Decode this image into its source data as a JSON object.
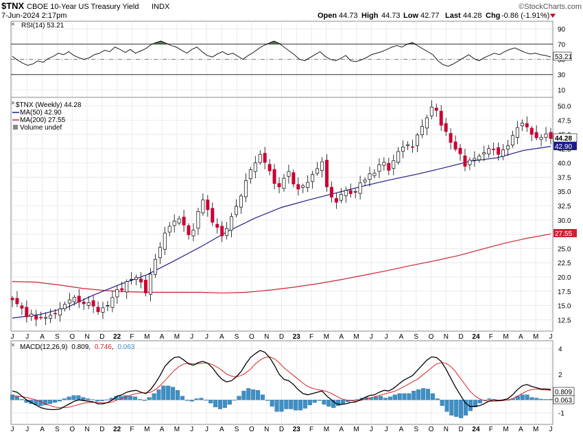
{
  "header": {
    "symbol": "$TNX",
    "name": "CBOE 10-Year US Treasury Yield",
    "exchange": "INDX",
    "date": "7-Jun-2024 2:17pm",
    "logo": "©StockCharts.com",
    "open_label": "Open",
    "open": "44.73",
    "high_label": "High",
    "high": "44.73",
    "low_label": "Low",
    "low": "42.77",
    "last_label": "Last",
    "last": "44.28",
    "chg_label": "Chg",
    "chg": "-0.86 (-1.91%)"
  },
  "colors": {
    "up": "#ffffff",
    "down": "#cc0033",
    "candle_outline": "#000000",
    "ma50": "#1c1c8c",
    "ma200": "#cc2233",
    "macd_line": "#000000",
    "signal_line": "#dd2222",
    "histogram": "#3d8fc6",
    "rsi_fill": "#4d7a4d",
    "grid": "#e6e6e6",
    "panel_border": "#888888"
  },
  "chart_data": [
    {
      "type": "line",
      "panel": "rsi",
      "title": "RSI(14) 53.21",
      "current_value": "53.21",
      "yticks": [
        "90",
        "70",
        "50",
        "30",
        "10"
      ],
      "ylim": [
        0,
        100
      ],
      "overbought": 70,
      "oversold": 30,
      "values": [
        54,
        49,
        45,
        42,
        44,
        48,
        46,
        51,
        54,
        58,
        56,
        60,
        55,
        52,
        50,
        52,
        56,
        58,
        62,
        60,
        66,
        63,
        59,
        63,
        58,
        61,
        64,
        69,
        72,
        74,
        71,
        68,
        66,
        62,
        58,
        63,
        66,
        60,
        55,
        53,
        57,
        60,
        56,
        58,
        54,
        50,
        55,
        59,
        64,
        68,
        71,
        74,
        71,
        66,
        61,
        56,
        50,
        48,
        52,
        56,
        60,
        54,
        50,
        48,
        51,
        55,
        48,
        47,
        49,
        52,
        56,
        58,
        60,
        63,
        66,
        68,
        66,
        70,
        72,
        68,
        64,
        60,
        56,
        48,
        43,
        41,
        44,
        48,
        52,
        56,
        51,
        48,
        52,
        55,
        58,
        56,
        60,
        63,
        65,
        62,
        59,
        57,
        58,
        56,
        55,
        53
      ]
    },
    {
      "type": "candlestick",
      "panel": "price",
      "title": "$TNX (Weekly) 44.28",
      "legend": [
        "$TNX (Weekly) 44.28",
        "MA(50) 42.90",
        "MA(200) 27.55",
        "Volume undef"
      ],
      "yticks": [
        "50.0",
        "47.5",
        "45.0",
        "42.5",
        "40.0",
        "37.5",
        "35.0",
        "32.5",
        "30.0",
        "27.5",
        "25.0",
        "22.5",
        "20.0",
        "17.5",
        "15.0",
        "12.5"
      ],
      "ylim": [
        10.5,
        51.5
      ],
      "last_label": "44.28",
      "ma50_label": "42.90",
      "ma200_label": "27.55",
      "closes": [
        16.0,
        15.3,
        14.5,
        13.0,
        13.5,
        12.6,
        12.9,
        12.9,
        13.3,
        13.6,
        14.4,
        15.2,
        16.0,
        16.4,
        15.6,
        15.3,
        15.5,
        14.9,
        13.9,
        14.6,
        15.0,
        16.4,
        17.8,
        17.7,
        19.2,
        19.6,
        19.9,
        19.1,
        17.2,
        20.5,
        23.1,
        25.2,
        27.7,
        28.9,
        29.8,
        30.2,
        29.1,
        27.4,
        28.2,
        31.5,
        33.5,
        31.8,
        29.6,
        28.7,
        27.2,
        28.5,
        30.6,
        32.4,
        34.2,
        36.9,
        38.8,
        40.0,
        41.5,
        40.1,
        38.6,
        36.4,
        35.8,
        37.3,
        38.5,
        36.3,
        35.4,
        36.0,
        36.6,
        38.0,
        39.0,
        40.2,
        35.8,
        34.0,
        33.1,
        34.5,
        35.2,
        34.6,
        35.0,
        36.5,
        37.0,
        38.1,
        38.2,
        39.7,
        40.1,
        38.7,
        40.4,
        42.0,
        42.8,
        43.2,
        42.8,
        44.9,
        46.4,
        47.9,
        49.8,
        49.2,
        46.6,
        45.5,
        43.6,
        42.4,
        41.6,
        39.4,
        40.5,
        40.8,
        41.2,
        41.8,
        42.5,
        42.4,
        41.5,
        42.3,
        43.0,
        44.8,
        46.2,
        47.0,
        46.3,
        45.0,
        44.4,
        44.5,
        45.1,
        44.28
      ]
    },
    {
      "type": "line",
      "panel": "price_overlay",
      "series": [
        {
          "name": "MA(50)",
          "value_label": "42.90",
          "values": [
            12.8,
            13.4,
            14.6,
            16.8,
            18.7,
            20.4,
            22.8,
            25.3,
            28.0,
            30.3,
            32.2,
            33.5,
            34.7,
            35.9,
            37.0,
            38.0,
            39.1,
            40.3,
            40.9,
            42.2,
            42.9
          ]
        },
        {
          "name": "MA(200)",
          "value_label": "27.55",
          "values": [
            19.2,
            19.1,
            18.6,
            18.0,
            17.6,
            17.4,
            17.3,
            17.3,
            17.3,
            17.2,
            17.3,
            17.7,
            18.2,
            18.8,
            19.5,
            20.3,
            21.1,
            22.0,
            22.8,
            23.7,
            24.8,
            25.9,
            26.8,
            27.55
          ]
        }
      ]
    },
    {
      "type": "line",
      "panel": "macd",
      "title": "MACD(12,26,9)",
      "macd_label": "0.809",
      "signal_label": "0.746",
      "hist_label": "0.063",
      "yticks": [
        "4",
        "2",
        "0",
        "-1"
      ],
      "ylim": [
        -1.9,
        4.6
      ],
      "right_labels": [
        "0.809",
        "0.063"
      ],
      "macd": [
        0.7,
        0.6,
        0.3,
        0.0,
        -0.2,
        -0.4,
        -0.6,
        -0.7,
        -0.75,
        -0.75,
        -0.7,
        -0.5,
        -0.3,
        -0.1,
        0.0,
        -0.05,
        -0.1,
        -0.15,
        -0.3,
        -0.3,
        -0.2,
        0.0,
        0.3,
        0.4,
        0.6,
        0.7,
        0.75,
        0.6,
        0.5,
        0.8,
        1.3,
        1.9,
        2.6,
        3.0,
        3.3,
        3.35,
        3.1,
        2.8,
        2.7,
        2.9,
        3.0,
        2.85,
        2.5,
        2.0,
        1.6,
        1.4,
        1.5,
        1.8,
        2.2,
        2.8,
        3.3,
        3.6,
        3.85,
        3.7,
        3.3,
        2.7,
        2.0,
        1.6,
        1.5,
        1.2,
        0.8,
        0.5,
        0.4,
        0.5,
        0.6,
        0.7,
        0.3,
        0.0,
        -0.3,
        -0.35,
        -0.3,
        -0.2,
        -0.15,
        0.0,
        0.2,
        0.35,
        0.4,
        0.6,
        0.75,
        0.7,
        0.9,
        1.2,
        1.5,
        1.7,
        1.9,
        2.3,
        2.7,
        3.1,
        3.35,
        3.3,
        3.0,
        2.4,
        1.7,
        1.0,
        0.4,
        -0.2,
        -0.5,
        -0.5,
        -0.45,
        -0.3,
        -0.1,
        0.0,
        -0.05,
        0.0,
        0.1,
        0.4,
        0.8,
        1.1,
        1.2,
        1.05,
        0.95,
        0.85,
        0.85,
        0.809
      ],
      "signal": [
        0.3,
        0.3,
        0.25,
        0.2,
        0.1,
        0.0,
        -0.15,
        -0.3,
        -0.45,
        -0.55,
        -0.6,
        -0.6,
        -0.55,
        -0.45,
        -0.35,
        -0.25,
        -0.2,
        -0.18,
        -0.2,
        -0.22,
        -0.22,
        -0.15,
        0.0,
        0.1,
        0.25,
        0.4,
        0.5,
        0.55,
        0.55,
        0.6,
        0.8,
        1.1,
        1.5,
        1.9,
        2.3,
        2.6,
        2.8,
        2.85,
        2.8,
        2.8,
        2.85,
        2.85,
        2.75,
        2.55,
        2.3,
        2.0,
        1.85,
        1.8,
        1.9,
        2.1,
        2.4,
        2.8,
        3.1,
        3.3,
        3.35,
        3.2,
        2.9,
        2.5,
        2.2,
        1.9,
        1.6,
        1.3,
        1.05,
        0.9,
        0.8,
        0.75,
        0.65,
        0.5,
        0.3,
        0.1,
        0.0,
        -0.05,
        -0.08,
        -0.05,
        0.05,
        0.15,
        0.25,
        0.35,
        0.45,
        0.55,
        0.65,
        0.8,
        1.0,
        1.2,
        1.4,
        1.6,
        1.9,
        2.2,
        2.5,
        2.8,
        2.9,
        2.85,
        2.6,
        2.2,
        1.7,
        1.2,
        0.7,
        0.35,
        0.1,
        -0.05,
        -0.1,
        -0.1,
        -0.08,
        -0.05,
        0.0,
        0.1,
        0.3,
        0.5,
        0.7,
        0.8,
        0.85,
        0.8,
        0.78,
        0.746
      ],
      "histogram": [
        0.4,
        0.3,
        0.05,
        -0.2,
        -0.3,
        -0.4,
        -0.45,
        -0.4,
        -0.3,
        -0.2,
        -0.1,
        0.1,
        0.25,
        0.35,
        0.35,
        0.2,
        0.1,
        0.03,
        -0.1,
        -0.08,
        0.02,
        0.15,
        0.3,
        0.3,
        0.35,
        0.3,
        0.25,
        0.05,
        -0.05,
        0.2,
        0.5,
        0.8,
        1.1,
        1.1,
        1.0,
        0.75,
        0.3,
        -0.05,
        -0.1,
        0.1,
        0.15,
        0.0,
        -0.25,
        -0.55,
        -0.7,
        -0.6,
        -0.35,
        0.0,
        0.3,
        0.7,
        0.9,
        0.8,
        0.75,
        0.4,
        -0.05,
        -0.5,
        -0.9,
        -0.9,
        -0.7,
        -0.7,
        -0.8,
        -0.8,
        -0.65,
        -0.4,
        -0.2,
        -0.05,
        -0.35,
        -0.5,
        -0.6,
        -0.45,
        -0.3,
        -0.15,
        -0.07,
        0.05,
        0.15,
        0.2,
        0.15,
        0.25,
        0.3,
        0.15,
        0.25,
        0.4,
        0.5,
        0.5,
        0.5,
        0.7,
        0.8,
        0.9,
        0.85,
        0.5,
        0.1,
        -0.45,
        -0.9,
        -1.2,
        -1.3,
        -1.4,
        -1.2,
        -0.85,
        -0.55,
        -0.25,
        0.0,
        0.1,
        0.03,
        0.0,
        0.0,
        0.0,
        0.1,
        0.3,
        0.4,
        0.4,
        0.2,
        0.15,
        0.07,
        0.05,
        0.063
      ]
    }
  ],
  "x_axis": {
    "labels": [
      "J",
      "J",
      "A",
      "S",
      "O",
      "N",
      "D",
      "22",
      "F",
      "M",
      "A",
      "M",
      "J",
      "J",
      "A",
      "S",
      "O",
      "N",
      "D",
      "23",
      "F",
      "M",
      "A",
      "M",
      "J",
      "J",
      "A",
      "S",
      "O",
      "N",
      "D",
      "24",
      "F",
      "M",
      "A",
      "M",
      "J"
    ],
    "bold_labels": [
      "22",
      "23",
      "24"
    ]
  }
}
